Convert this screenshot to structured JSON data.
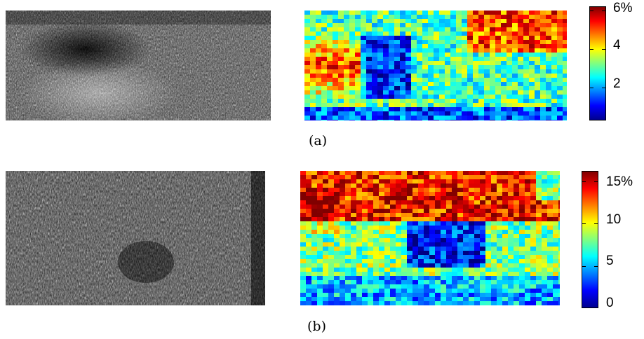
{
  "panels": [
    {
      "caption": "(a)",
      "colorbar": {
        "ticks": [
          "6%",
          "4",
          "2"
        ],
        "tick_values": [
          6,
          4,
          2
        ],
        "range": [
          0.3,
          6.2
        ],
        "colormap": "jet"
      }
    },
    {
      "caption": "(b)",
      "colorbar": {
        "ticks": [
          "15%",
          "10",
          "5",
          "0"
        ],
        "tick_values": [
          15,
          10,
          5,
          0
        ],
        "range": [
          0,
          16.2
        ],
        "colormap": "jet"
      }
    }
  ],
  "colors": {
    "jet_stops": [
      "#00008f",
      "#0000ff",
      "#0080ff",
      "#00ffff",
      "#80ff80",
      "#ffff00",
      "#ff8000",
      "#ff0000",
      "#800000"
    ]
  }
}
